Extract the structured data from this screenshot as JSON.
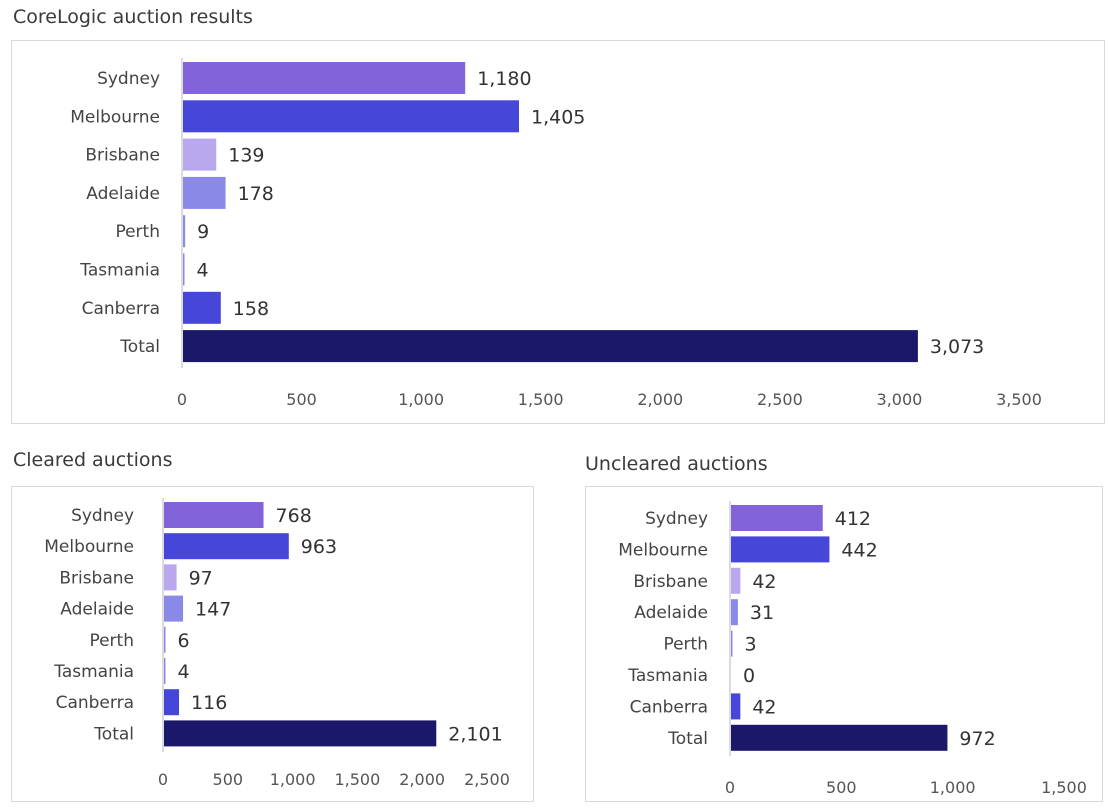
{
  "chart_data": [
    {
      "type": "bar",
      "orientation": "horizontal",
      "title": "CoreLogic auction results",
      "categories": [
        "Sydney",
        "Melbourne",
        "Brisbane",
        "Adelaide",
        "Perth",
        "Tasmania",
        "Canberra",
        "Total"
      ],
      "values": [
        1180,
        1405,
        139,
        178,
        9,
        4,
        158,
        3073
      ],
      "value_labels": [
        "1,180",
        "1,405",
        "139",
        "178",
        "9",
        "4",
        "158",
        "3,073"
      ],
      "colors": [
        "#8363d9",
        "#4646d8",
        "#b9a8ee",
        "#8b89e8",
        "#8b89e8",
        "#8b89e8",
        "#4646d8",
        "#1b1769"
      ],
      "xlim": [
        0,
        3500
      ],
      "ticks": [
        0,
        500,
        1000,
        1500,
        2000,
        2500,
        3000,
        3500
      ],
      "tick_labels": [
        "0",
        "500",
        "1,000",
        "1,500",
        "2,000",
        "2,500",
        "3,000",
        "3,500"
      ],
      "grid": false
    },
    {
      "type": "bar",
      "orientation": "horizontal",
      "title": "Cleared auctions",
      "categories": [
        "Sydney",
        "Melbourne",
        "Brisbane",
        "Adelaide",
        "Perth",
        "Tasmania",
        "Canberra",
        "Total"
      ],
      "values": [
        768,
        963,
        97,
        147,
        6,
        4,
        116,
        2101
      ],
      "value_labels": [
        "768",
        "963",
        "97",
        "147",
        "6",
        "4",
        "116",
        "2,101"
      ],
      "colors": [
        "#8363d9",
        "#4646d8",
        "#b9a8ee",
        "#8b89e8",
        "#8b89e8",
        "#8b89e8",
        "#4646d8",
        "#1b1769"
      ],
      "xlim": [
        0,
        2500
      ],
      "ticks": [
        0,
        500,
        1000,
        1500,
        2000,
        2500
      ],
      "tick_labels": [
        "0",
        "500",
        "1,000",
        "1,500",
        "2,000",
        "2,500"
      ],
      "grid": false
    },
    {
      "type": "bar",
      "orientation": "horizontal",
      "title": "Uncleared auctions",
      "categories": [
        "Sydney",
        "Melbourne",
        "Brisbane",
        "Adelaide",
        "Perth",
        "Tasmania",
        "Canberra",
        "Total"
      ],
      "values": [
        412,
        442,
        42,
        31,
        3,
        0,
        42,
        972
      ],
      "value_labels": [
        "412",
        "442",
        "42",
        "31",
        "3",
        "0",
        "42",
        "972"
      ],
      "colors": [
        "#8363d9",
        "#4646d8",
        "#b9a8ee",
        "#8b89e8",
        "#8b89e8",
        "#8b89e8",
        "#4646d8",
        "#1b1769"
      ],
      "xlim": [
        0,
        1500
      ],
      "ticks": [
        0,
        500,
        1000,
        1500
      ],
      "tick_labels": [
        "0",
        "500",
        "1,000",
        "1,500"
      ],
      "grid": false
    }
  ]
}
